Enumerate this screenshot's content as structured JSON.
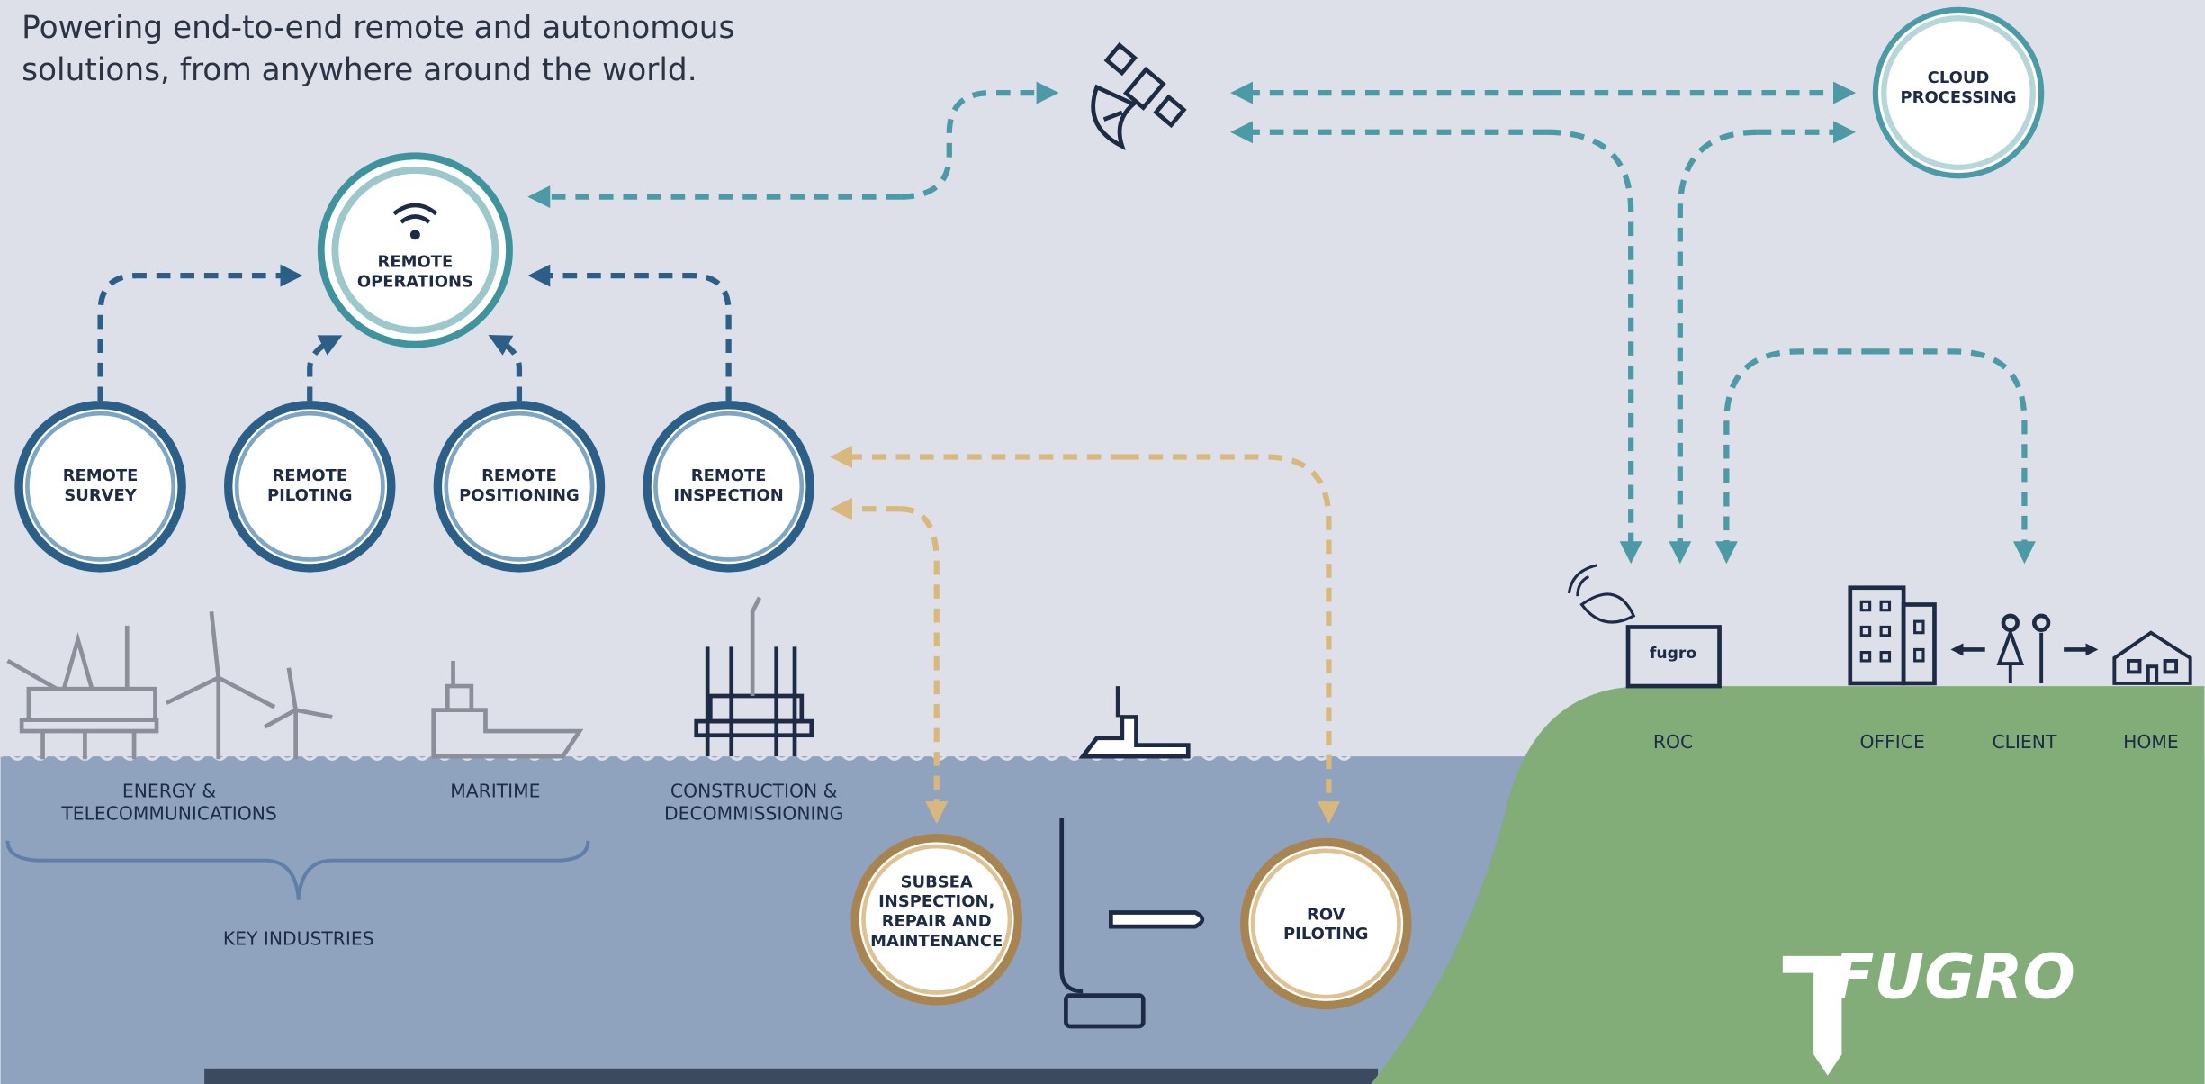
{
  "header": {
    "lines": [
      "Powering end-to-end remote and autonomous",
      "solutions, from anywhere around the world."
    ]
  },
  "nodes": [
    {
      "lines": [
        "REMOTE",
        "OPERATIONS"
      ]
    },
    {
      "lines": [
        "REMOTE",
        "SURVEY"
      ]
    },
    {
      "lines": [
        "REMOTE",
        "PILOTING"
      ]
    },
    {
      "lines": [
        "REMOTE",
        "POSITIONING"
      ]
    },
    {
      "lines": [
        "REMOTE",
        "INSPECTION"
      ]
    },
    {
      "lines": [
        "CLOUD",
        "PROCESSING"
      ]
    },
    {
      "lines": [
        "SUBSEA",
        "INSPECTION,",
        "REPAIR AND",
        "MAINTENANCE"
      ]
    },
    {
      "lines": [
        "ROV",
        "PILOTING"
      ]
    }
  ],
  "industries": [
    {
      "lines": [
        "ENERGY &",
        "TELECOMMUNICATIONS"
      ]
    },
    {
      "lines": [
        "MARITIME"
      ]
    },
    {
      "lines": [
        "CONSTRUCTION &",
        "DECOMMISSIONING"
      ]
    }
  ],
  "key_industries": "KEY INDUSTRIES",
  "locations": [
    "ROC",
    "OFFICE",
    "CLIENT",
    "HOME"
  ],
  "roc_sign": "fugro",
  "logo": "FUGRO"
}
